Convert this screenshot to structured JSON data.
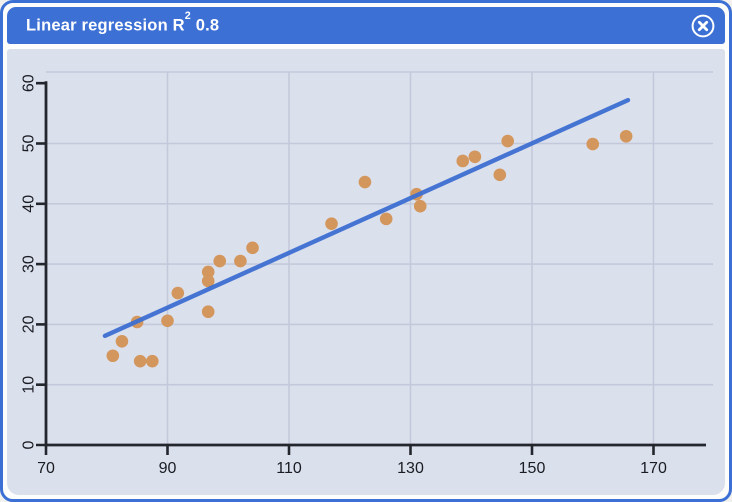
{
  "window": {
    "title_prefix": "Linear regression R",
    "title_sup": "2",
    "title_suffix": " 0.8",
    "close_icon": "x-in-circle"
  },
  "colors": {
    "frame_blue": "#3c70d4",
    "titlebar_blue": "#3c70d4",
    "title_text": "#ffffff",
    "panel_bg": "#dbe0ed",
    "grid": "#c3c9da",
    "axis": "#24262e",
    "tick_label": "#1a1c22",
    "point_fill": "#d3975d",
    "line_blue": "#3d6fd2"
  },
  "chart_data": {
    "type": "scatter",
    "title": "Linear regression R² 0.8",
    "r_squared": 0.8,
    "xlabel": "",
    "ylabel": "",
    "xlim": [
      70,
      178.5
    ],
    "ylim": [
      0,
      61.8
    ],
    "x_ticks": [
      70,
      90,
      110,
      130,
      150,
      170
    ],
    "y_ticks": [
      0,
      10,
      20,
      30,
      40,
      50,
      60
    ],
    "grid": true,
    "legend": "none",
    "points": [
      [
        81,
        14.8
      ],
      [
        82.5,
        17.2
      ],
      [
        85,
        20.4
      ],
      [
        85.5,
        13.9
      ],
      [
        87.5,
        13.9
      ],
      [
        90,
        20.6
      ],
      [
        91.7,
        25.2
      ],
      [
        96.7,
        22.1
      ],
      [
        96.7,
        27.2
      ],
      [
        96.7,
        28.7
      ],
      [
        98.6,
        30.5
      ],
      [
        102,
        30.5
      ],
      [
        104,
        32.7
      ],
      [
        117,
        36.7
      ],
      [
        122.5,
        43.6
      ],
      [
        126,
        37.5
      ],
      [
        131,
        41.6
      ],
      [
        131.6,
        39.6
      ],
      [
        138.6,
        47.1
      ],
      [
        140.6,
        47.8
      ],
      [
        144.7,
        44.8
      ],
      [
        146,
        50.4
      ],
      [
        160,
        49.9
      ],
      [
        165.5,
        51.2
      ]
    ],
    "regression_line": {
      "x1": 79.7,
      "y1": 18.1,
      "x2": 165.8,
      "y2": 57.2
    }
  }
}
